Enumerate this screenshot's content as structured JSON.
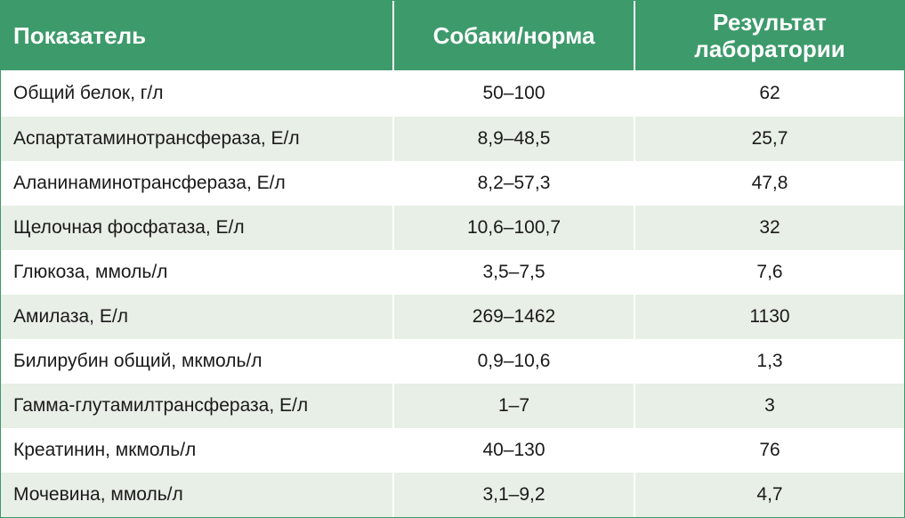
{
  "table": {
    "headers": [
      "Показатель",
      "Собаки/норма",
      "Результат лаборатории"
    ],
    "rows": [
      [
        "Общий белок, г/л",
        "50–100",
        "62"
      ],
      [
        "Аспартатаминотрансфераза, Е/л",
        "8,9–48,5",
        "25,7"
      ],
      [
        "Аланинаминотрансфераза, Е/л",
        "8,2–57,3",
        "47,8"
      ],
      [
        "Щелочная фосфатаза, Е/л",
        "10,6–100,7",
        "32"
      ],
      [
        "Глюкоза, ммоль/л",
        "3,5–7,5",
        "7,6"
      ],
      [
        "Амилаза, Е/л",
        "269–1462",
        "1130"
      ],
      [
        "Билирубин общий, мкмоль/л",
        "0,9–10,6",
        "1,3"
      ],
      [
        "Гамма-глутамилтрансфераза, Е/л",
        "1–7",
        "3"
      ],
      [
        "Креатинин, мкмоль/л",
        "40–130",
        "76"
      ],
      [
        "Мочевина, ммоль/л",
        "3,1–9,2",
        "4,7"
      ]
    ]
  },
  "colors": {
    "header_bg": "#3d9a6b",
    "header_text": "#ffffff",
    "stripe": "#e8efe6"
  }
}
